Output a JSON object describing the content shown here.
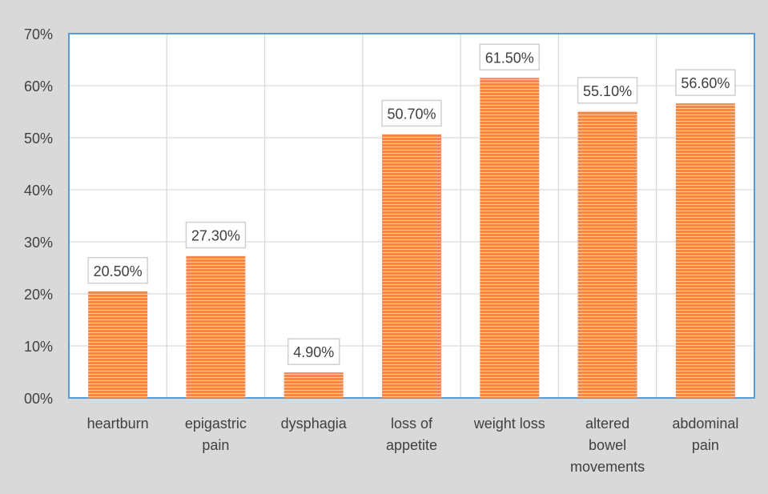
{
  "chart_data": {
    "type": "bar",
    "categories": [
      [
        "heartburn"
      ],
      [
        "epigastric",
        "pain"
      ],
      [
        "dysphagia"
      ],
      [
        "loss of",
        "appetite"
      ],
      [
        "weight loss"
      ],
      [
        "altered",
        "bowel",
        "movements"
      ],
      [
        "abdominal",
        "pain"
      ]
    ],
    "values": [
      20.5,
      27.3,
      4.9,
      50.7,
      61.5,
      55.1,
      56.6
    ],
    "data_labels": [
      "20.50%",
      "27.30%",
      "4.90%",
      "50.70%",
      "61.50%",
      "55.10%",
      "56.60%"
    ],
    "y_ticks": [
      0,
      10,
      20,
      30,
      40,
      50,
      60,
      70
    ],
    "y_tick_labels": [
      "00%",
      "10%",
      "20%",
      "30%",
      "40%",
      "50%",
      "60%",
      "70%"
    ],
    "ylim": [
      0,
      70
    ],
    "title": "",
    "xlabel": "",
    "ylabel": "",
    "grid": true,
    "legend": "none",
    "colors": {
      "bar": "#f08a4b",
      "bar_stripe": "#fbd3b8",
      "plot_border": "#5b9bd5",
      "grid": "#d9d9d9",
      "background": "#d9d9d9",
      "plot_background": "#ffffff",
      "text": "#404040"
    }
  }
}
